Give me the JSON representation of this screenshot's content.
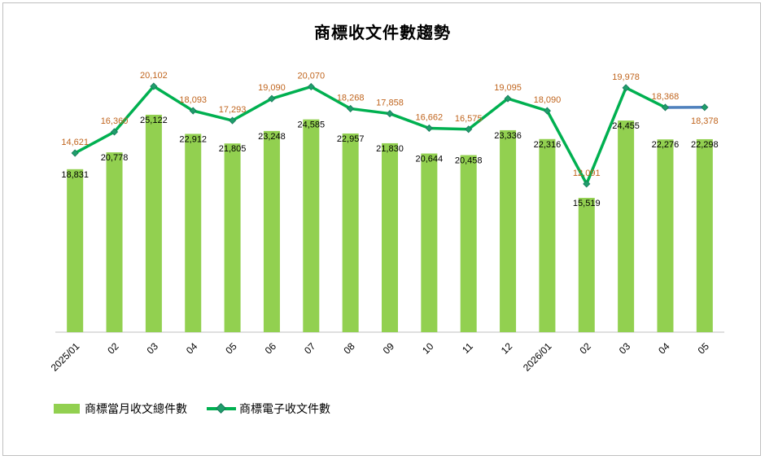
{
  "chart_data": {
    "type": "bar+line",
    "title": "商標收文件數趨勢",
    "categories": [
      "2025/01",
      "02",
      "03",
      "04",
      "05",
      "06",
      "07",
      "08",
      "09",
      "10",
      "11",
      "12",
      "2026/01",
      "02",
      "03",
      "04",
      "05"
    ],
    "series": [
      {
        "name": "商標當月收文總件數",
        "type": "bar",
        "color": "#92d050",
        "label_color": "#000000",
        "values": [
          18831,
          20778,
          25122,
          22912,
          21805,
          23248,
          24585,
          22957,
          21830,
          20644,
          20458,
          23336,
          22316,
          15519,
          24455,
          22276,
          22298
        ],
        "labels": [
          "18,831",
          "20,778",
          "25,122",
          "22,912",
          "21,805",
          "23,248",
          "24,585",
          "22,957",
          "21,830",
          "20,644",
          "20,458",
          "23,336",
          "22,316",
          "15,519",
          "24,455",
          "22,276",
          "22,298"
        ]
      },
      {
        "name": "商標電子收文件數",
        "type": "line",
        "color": "#00b050",
        "last_segment_color": "#4f81bd",
        "marker_color": "#1f9e6b",
        "label_color": "#c0504d",
        "values": [
          14621,
          16360,
          20102,
          18093,
          17293,
          19090,
          20070,
          18268,
          17858,
          16662,
          16575,
          19095,
          18090,
          12091,
          19978,
          18368,
          18378
        ],
        "labels": [
          "14,621",
          "16,360",
          "20,102",
          "18,093",
          "17,293",
          "19,090",
          "20,070",
          "18,268",
          "17,858",
          "16,662",
          "16,575",
          "19,095",
          "18,090",
          "12,091",
          "19,978",
          "18,368",
          "18,378"
        ]
      }
    ],
    "legend_position": "bottom-left",
    "grid": false
  }
}
